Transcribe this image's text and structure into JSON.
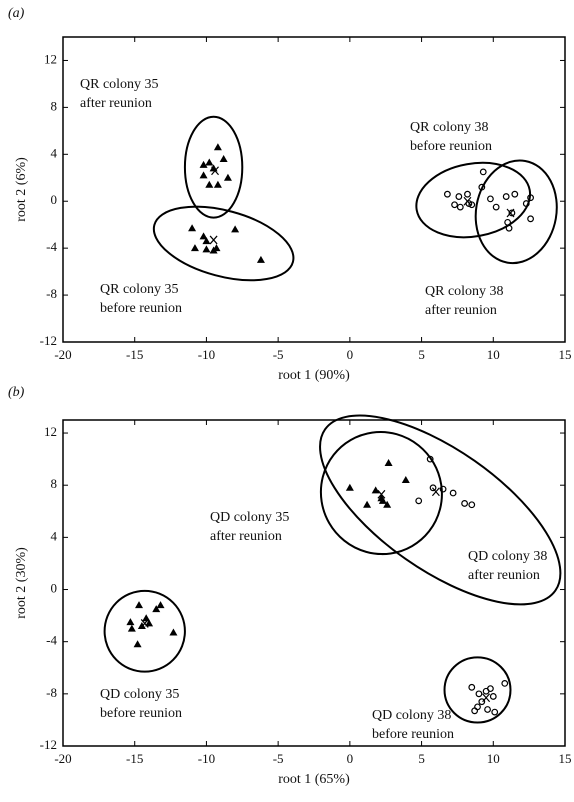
{
  "chart_data": [
    {
      "type": "scatter",
      "title": "(a)",
      "x_label": "root 1 (90%)",
      "y_label": "root 2 (6%)",
      "color": "#000000",
      "xlim": [
        -20,
        15
      ],
      "ylim": [
        -12,
        14
      ],
      "xticks": [
        -20,
        -15,
        -10,
        -5,
        0,
        5,
        10,
        15
      ],
      "yticks": [
        -12,
        -8,
        -4,
        0,
        4,
        8,
        12
      ],
      "series": [
        {
          "marker": "triangle",
          "x": [
            -9.2,
            -10.2,
            -9.8,
            -8.8,
            -9.5,
            -10.2,
            -8.5,
            -9.8,
            -9.2
          ],
          "y": [
            4.6,
            3.1,
            3.3,
            3.6,
            2.8,
            2.2,
            2.0,
            1.4,
            1.4
          ]
        },
        {
          "marker": "triangle",
          "x": [
            -11,
            -10.2,
            -10.8,
            -10,
            -9.5,
            -9.3,
            -8,
            -6.2,
            -10
          ],
          "y": [
            -2.3,
            -3,
            -4,
            -3.4,
            -4.2,
            -4,
            -2.4,
            -5,
            -4.1
          ]
        },
        {
          "marker": "circle",
          "x": [
            6.8,
            7.6,
            8.2,
            7.3,
            7.7,
            8.5,
            9.2,
            9.3,
            9.8,
            8.3
          ],
          "y": [
            0.6,
            0.4,
            0.6,
            -0.3,
            -0.5,
            -0.3,
            1.2,
            2.5,
            0.2,
            -0.2
          ]
        },
        {
          "marker": "circle",
          "x": [
            10.9,
            11.5,
            12.3,
            12.6,
            11.3,
            11.0,
            11.1,
            10.2,
            12.6
          ],
          "y": [
            0.4,
            0.6,
            -0.2,
            -1.5,
            -1,
            -1.8,
            -2.3,
            -0.5,
            0.3
          ]
        },
        {
          "marker": "x",
          "x": [
            -9.4,
            -9.5,
            8.2,
            11.2
          ],
          "y": [
            2.6,
            -3.3,
            0.0,
            -1.0
          ]
        }
      ],
      "ellipses": [
        {
          "cx": -9.5,
          "cy": 2.9,
          "rx": 2.0,
          "ry": 4.3,
          "angle": 0
        },
        {
          "cx": -8.8,
          "cy": -3.6,
          "rx": 5.0,
          "ry": 2.8,
          "angle": 15
        },
        {
          "cx": 8.6,
          "cy": 0.1,
          "rx": 4.0,
          "ry": 3.1,
          "angle": -10
        },
        {
          "cx": 11.6,
          "cy": -0.9,
          "rx": 2.8,
          "ry": 4.4,
          "angle": 10
        }
      ],
      "annotations": [
        [
          "QR colony 35",
          "after reunion"
        ],
        [
          "QR colony 35",
          "before reunion"
        ],
        [
          "QR colony 38",
          "before reunion"
        ],
        [
          "QR colony 38",
          "after reunion"
        ]
      ]
    },
    {
      "type": "scatter",
      "title": "(b)",
      "x_label": "root 1 (65%)",
      "y_label": "root 2 (30%)",
      "color": "#000000",
      "xlim": [
        -20,
        15
      ],
      "ylim": [
        -12,
        13
      ],
      "xticks": [
        -20,
        -15,
        -10,
        -5,
        0,
        5,
        10,
        15
      ],
      "yticks": [
        -12,
        -8,
        -4,
        0,
        4,
        8,
        12
      ],
      "series": [
        {
          "marker": "triangle",
          "x": [
            -15.3,
            -15.2,
            -14.7,
            -14.2,
            -14,
            -13.5,
            -13.2,
            -14.8,
            -12.3,
            -14.5
          ],
          "y": [
            -2.5,
            -3,
            -1.2,
            -2.2,
            -2.6,
            -1.5,
            -1.2,
            -4.2,
            -3.3,
            -2.8
          ]
        },
        {
          "marker": "triangle",
          "x": [
            0,
            1.2,
            1.8,
            2.3,
            2.6,
            2.7,
            3.9,
            2.2
          ],
          "y": [
            7.8,
            6.5,
            7.6,
            6.8,
            6.5,
            9.7,
            8.4,
            7.0
          ]
        },
        {
          "marker": "circle",
          "x": [
            5.6,
            4.8,
            5.8,
            6.5,
            7.2,
            8.0,
            8.5
          ],
          "y": [
            10.0,
            6.8,
            7.8,
            7.7,
            7.4,
            6.6,
            6.5
          ]
        },
        {
          "marker": "circle",
          "x": [
            8.5,
            9,
            9.5,
            10,
            9.2,
            8.9,
            9.6,
            10.1,
            10.8,
            9.8,
            8.7
          ],
          "y": [
            -7.5,
            -8,
            -7.8,
            -8.2,
            -8.6,
            -9,
            -9.2,
            -9.4,
            -7.2,
            -7.6,
            -9.3
          ]
        },
        {
          "marker": "x",
          "x": [
            -14.3,
            2.2,
            6.0,
            9.5
          ],
          "y": [
            -2.6,
            7.3,
            7.5,
            -8.3
          ]
        }
      ],
      "ellipses": [
        {
          "cx": -14.3,
          "cy": -3.2,
          "rx": 2.8,
          "ry": 3.1,
          "angle": 0
        },
        {
          "cx": 2.2,
          "cy": 7.4,
          "rx": 4.2,
          "ry": 4.7,
          "angle": -30
        },
        {
          "cx": 6.3,
          "cy": 6.1,
          "rx": 9.8,
          "ry": 4.6,
          "angle": 35
        },
        {
          "cx": 8.9,
          "cy": -7.7,
          "rx": 2.3,
          "ry": 2.5,
          "angle": 0
        }
      ],
      "annotations": [
        [
          "QD colony 35",
          "after reunion"
        ],
        [
          "QD colony 38",
          "after reunion"
        ],
        [
          "QD colony 35",
          "before reunion"
        ],
        [
          "QD colony 38",
          "before reunion"
        ]
      ]
    }
  ]
}
